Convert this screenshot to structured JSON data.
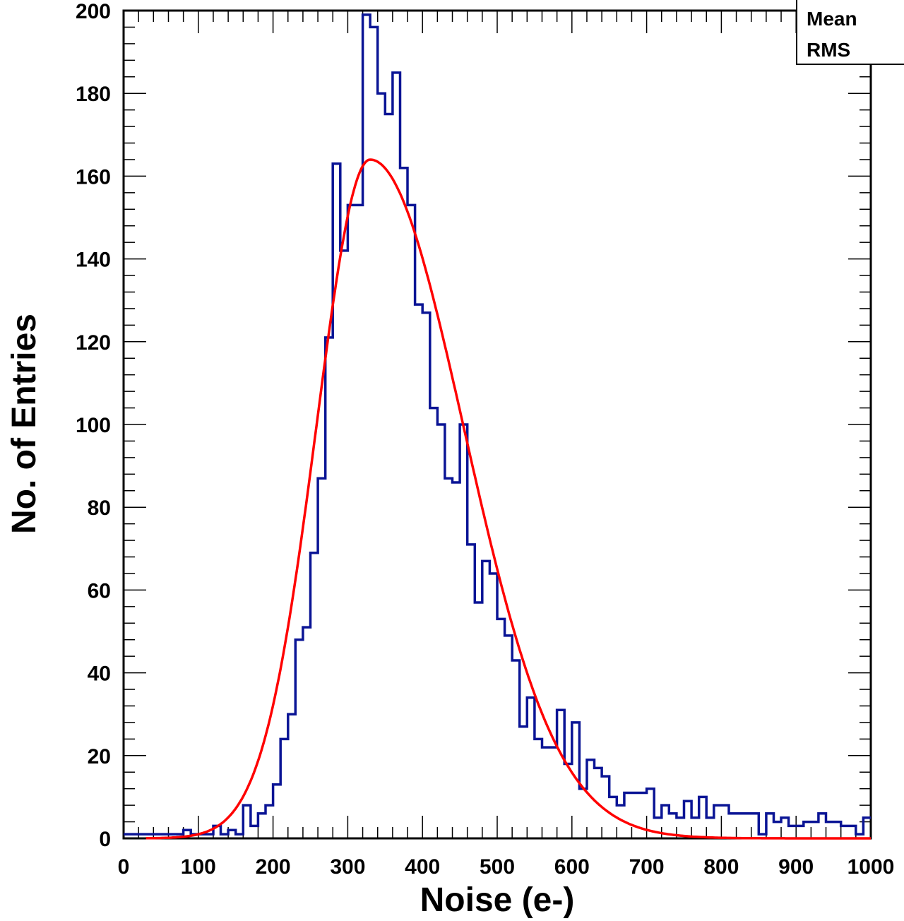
{
  "chart_data": {
    "type": "histogram",
    "title": "",
    "xlabel": "Noise (e-)",
    "ylabel": "No. of Entries",
    "xlim": [
      0,
      1000
    ],
    "ylim": [
      0,
      200
    ],
    "x_ticks": [
      "0",
      "100",
      "200",
      "300",
      "400",
      "500",
      "600",
      "700",
      "800",
      "900",
      "1000"
    ],
    "y_ticks": [
      "0",
      "20",
      "40",
      "60",
      "80",
      "100",
      "120",
      "140",
      "160",
      "180",
      "200"
    ],
    "grid": false,
    "legend": "none",
    "stats_box": {
      "placement": "top-right",
      "labels": [
        "Mean",
        "RMS"
      ]
    },
    "bin_width": 10,
    "bin_start": 0,
    "bin_counts": [
      1,
      1,
      1,
      1,
      1,
      1,
      1,
      1,
      2,
      1,
      1,
      1,
      3,
      1,
      2,
      1,
      8,
      3,
      6,
      8,
      13,
      24,
      30,
      48,
      51,
      69,
      87,
      121,
      163,
      142,
      153,
      153,
      199,
      196,
      180,
      175,
      185,
      162,
      153,
      129,
      127,
      104,
      100,
      87,
      86,
      100,
      71,
      57,
      67,
      64,
      53,
      49,
      43,
      27,
      34,
      24,
      22,
      22,
      31,
      18,
      28,
      12,
      19,
      17,
      15,
      10,
      8,
      11,
      11,
      11,
      12,
      5,
      8,
      6,
      5,
      9,
      5,
      10,
      5,
      8,
      8,
      6,
      6,
      6,
      6,
      1,
      6,
      4,
      5,
      3,
      3,
      4,
      4,
      6,
      4,
      4,
      3,
      3,
      1,
      5
    ],
    "hist_color": "#0a1495",
    "fit": {
      "name": "",
      "function": "landau-like",
      "amplitude": 164,
      "mpv": 330,
      "sigma_left": 72,
      "sigma_right": 125,
      "color": "#ff0000"
    }
  }
}
